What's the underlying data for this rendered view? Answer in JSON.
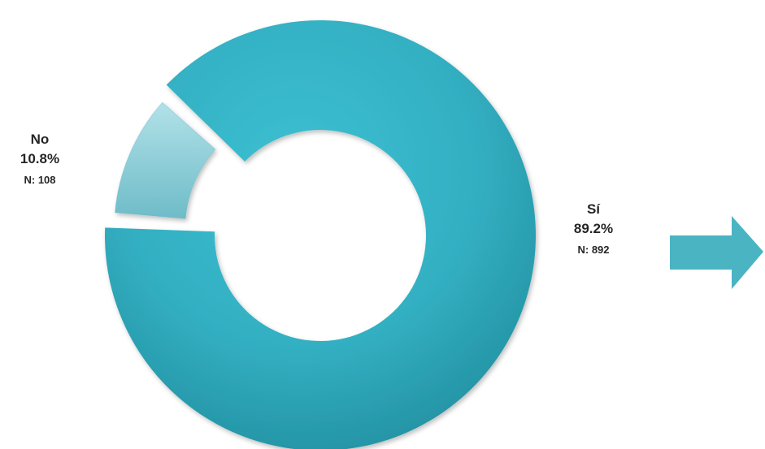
{
  "chart_data": {
    "type": "pie",
    "categories": [
      "Sí",
      "No"
    ],
    "values": [
      89.2,
      10.8
    ],
    "counts": [
      892,
      108
    ],
    "labels": [
      {
        "category": "Sí",
        "percent": "89.2%",
        "n": "N: 892"
      },
      {
        "category": "No",
        "percent": "10.8%",
        "n": "N: 108"
      }
    ],
    "colors": {
      "si": "#33AFC2",
      "si_dark": "#1F8C9C",
      "no": "#8FD0DA",
      "no_dark": "#5FB4C2",
      "arrow": "#4AB4C3"
    }
  }
}
